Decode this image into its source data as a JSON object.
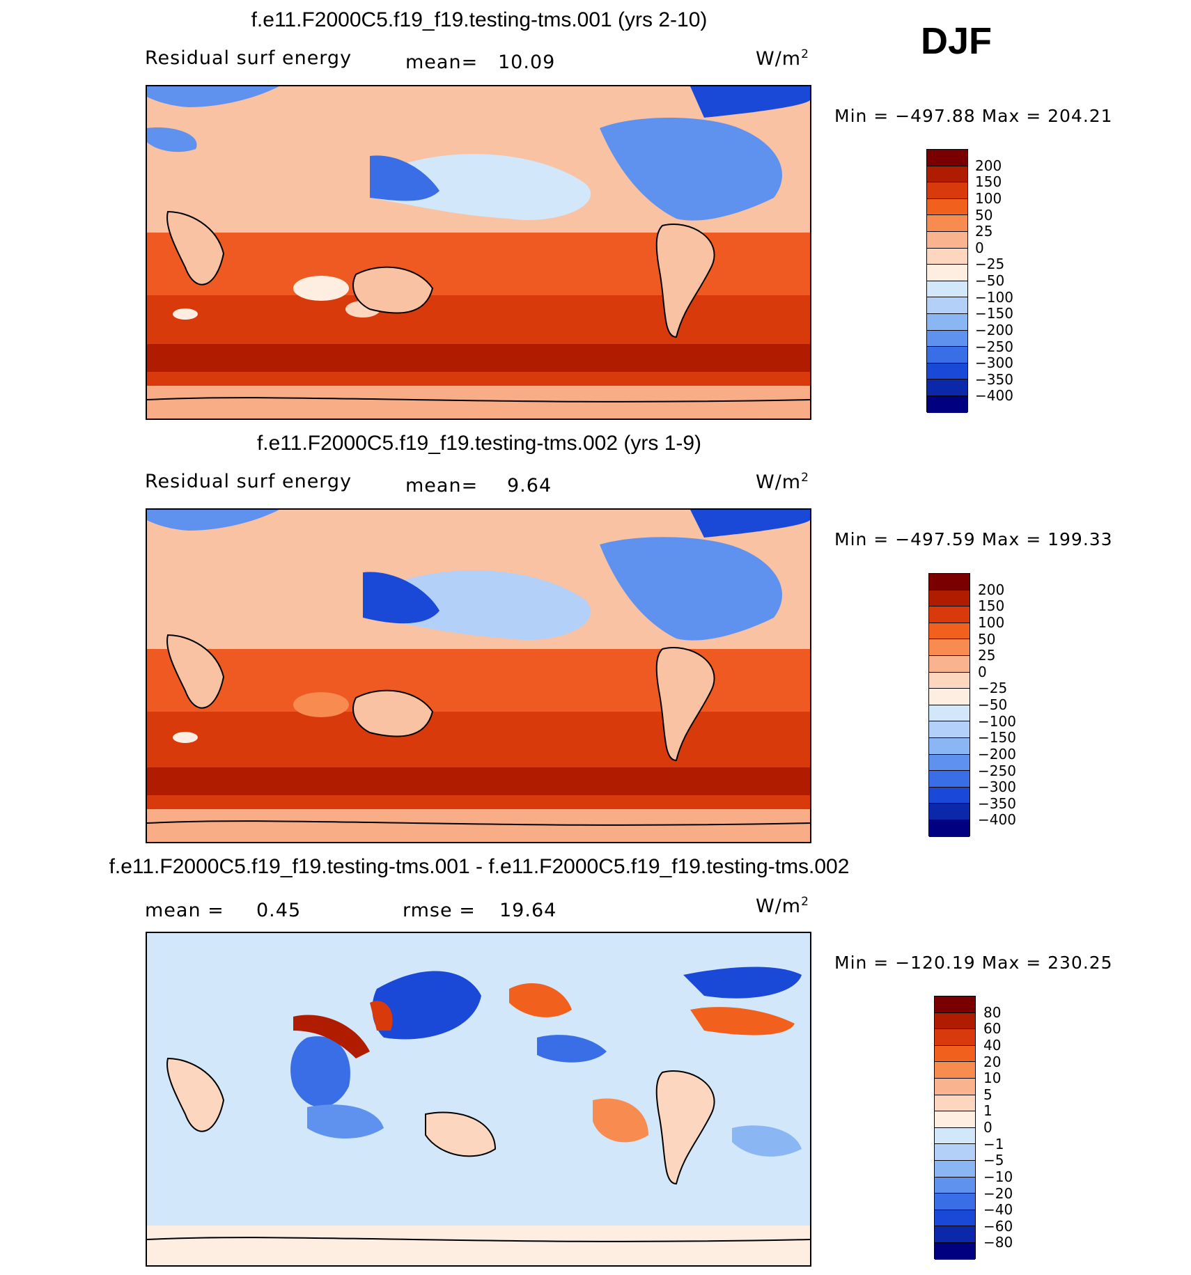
{
  "season": "DJF",
  "chart_data": [
    {
      "type": "heatmap",
      "title": "f.e11.F2000C5.f19_f19.testing-tms.001 (yrs 2-10)",
      "variable": "Residual surf energy",
      "mean_label": "mean=",
      "mean_value": "10.09",
      "units": "W/m",
      "units_exp": "2",
      "min_label": "Min = −497.88 Max = 204.21",
      "levels": [
        "200",
        "150",
        "100",
        "50",
        "25",
        "0",
        "−25",
        "−50",
        "−100",
        "−150",
        "−200",
        "−250",
        "−300",
        "−350",
        "−400"
      ],
      "colors": [
        "#7a0000",
        "#b01c00",
        "#d93a0c",
        "#f2601e",
        "#f78b50",
        "#f9b48f",
        "#fdd6bf",
        "#fdeee1",
        "#d3e7fb",
        "#b2d0f8",
        "#8bb6f4",
        "#5f92ee",
        "#3a6ee6",
        "#1a49d7",
        "#0b28aa",
        "#000080"
      ]
    },
    {
      "type": "heatmap",
      "title": "f.e11.F2000C5.f19_f19.testing-tms.002 (yrs 1-9)",
      "variable": "Residual surf energy",
      "mean_label": "mean=",
      "mean_value": "9.64",
      "units": "W/m",
      "units_exp": "2",
      "min_label": "Min = −497.59 Max = 199.33",
      "levels": [
        "200",
        "150",
        "100",
        "50",
        "25",
        "0",
        "−25",
        "−50",
        "−100",
        "−150",
        "−200",
        "−250",
        "−300",
        "−350",
        "−400"
      ],
      "colors": [
        "#7a0000",
        "#b01c00",
        "#d93a0c",
        "#f2601e",
        "#f78b50",
        "#f9b48f",
        "#fdd6bf",
        "#fdeee1",
        "#d3e7fb",
        "#b2d0f8",
        "#8bb6f4",
        "#5f92ee",
        "#3a6ee6",
        "#1a49d7",
        "#0b28aa",
        "#000080"
      ]
    },
    {
      "type": "heatmap",
      "title": "f.e11.F2000C5.f19_f19.testing-tms.001 - f.e11.F2000C5.f19_f19.testing-tms.002",
      "mean_label": "mean =",
      "mean_value": "0.45",
      "rmse_label": "rmse =",
      "rmse_value": "19.64",
      "units": "W/m",
      "units_exp": "2",
      "min_label": "Min = −120.19 Max = 230.25",
      "levels": [
        "80",
        "60",
        "40",
        "20",
        "10",
        "5",
        "1",
        "0",
        "−1",
        "−5",
        "−10",
        "−20",
        "−40",
        "−60",
        "−80"
      ],
      "colors": [
        "#7a0000",
        "#b01c00",
        "#d93a0c",
        "#f2601e",
        "#f78b50",
        "#f9b48f",
        "#fdd6bf",
        "#fdeee1",
        "#d3e7fb",
        "#b2d0f8",
        "#8bb6f4",
        "#5f92ee",
        "#3a6ee6",
        "#1a49d7",
        "#0b28aa",
        "#000080"
      ]
    }
  ]
}
